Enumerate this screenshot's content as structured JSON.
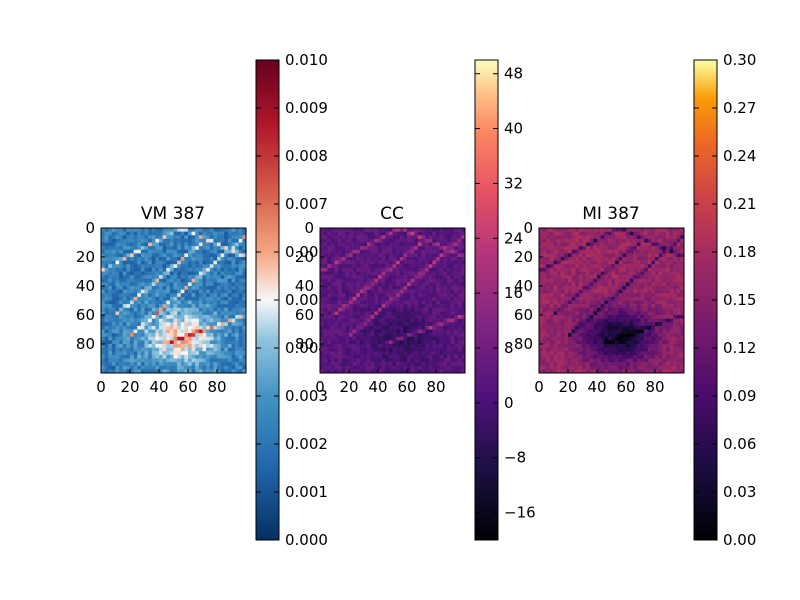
{
  "chart_data": [
    {
      "type": "heatmap",
      "title": "VM 387",
      "xlabel": "",
      "ylabel": "",
      "x_ticks": [
        "0",
        "20",
        "40",
        "60",
        "80"
      ],
      "y_ticks": [
        "0",
        "20",
        "40",
        "60",
        "80"
      ],
      "xlim": [
        0,
        100
      ],
      "ylim": [
        100,
        0
      ],
      "colormap": "RdBu_r",
      "colorbar": {
        "range": [
          0.0,
          0.01
        ],
        "ticks": [
          "0.000",
          "0.001",
          "0.002",
          "0.003",
          "0.004",
          "0.005",
          "0.006",
          "0.007",
          "0.008",
          "0.009",
          "0.010"
        ]
      },
      "description_colors": {
        "low": "#053061",
        "mid": "#f7f7f7",
        "high": "#67001f"
      }
    },
    {
      "type": "heatmap",
      "title": "CC",
      "xlabel": "",
      "ylabel": "",
      "x_ticks": [
        "0",
        "20",
        "40",
        "60",
        "80"
      ],
      "y_ticks": [
        "0",
        "20",
        "40",
        "60",
        "80"
      ],
      "xlim": [
        0,
        100
      ],
      "ylim": [
        100,
        0
      ],
      "colormap": "magma",
      "colorbar": {
        "range": [
          -20,
          50
        ],
        "ticks": [
          "−16",
          "−8",
          "0",
          "8",
          "16",
          "24",
          "32",
          "40",
          "48"
        ]
      }
    },
    {
      "type": "heatmap",
      "title": "MI 387",
      "xlabel": "",
      "ylabel": "",
      "x_ticks": [
        "0",
        "20",
        "40",
        "60",
        "80"
      ],
      "y_ticks": [
        "0",
        "20",
        "40",
        "60",
        "80"
      ],
      "xlim": [
        0,
        100
      ],
      "ylim": [
        100,
        0
      ],
      "colormap": "inferno",
      "colorbar": {
        "range": [
          0.0,
          0.3
        ],
        "ticks": [
          "0.00",
          "0.03",
          "0.06",
          "0.09",
          "0.12",
          "0.15",
          "0.18",
          "0.21",
          "0.24",
          "0.27",
          "0.30"
        ]
      }
    }
  ]
}
